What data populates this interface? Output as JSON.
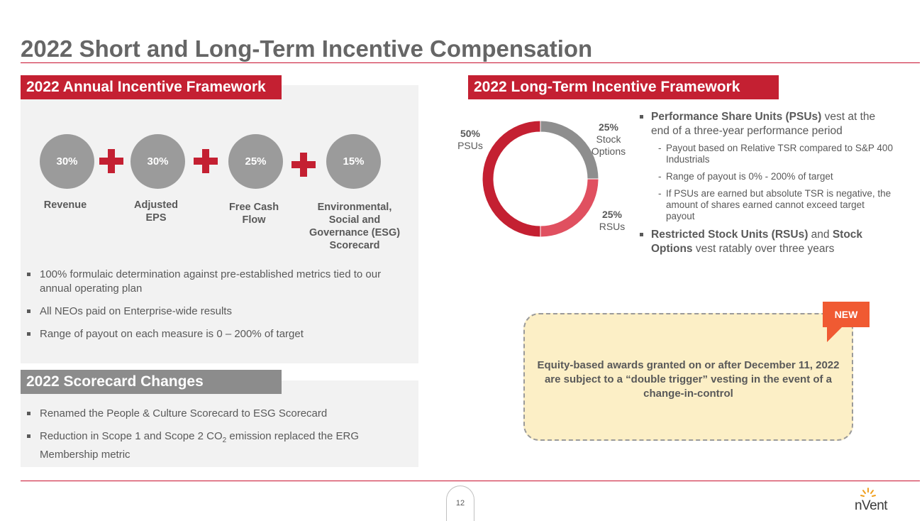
{
  "title": "2022 Short and Long-Term Incentive Compensation",
  "annual": {
    "header": "2022 Annual Incentive Framework",
    "metrics": [
      {
        "pct": "30%",
        "label": "Revenue"
      },
      {
        "pct": "30%",
        "label": "Adjusted EPS"
      },
      {
        "pct": "25%",
        "label": "Free Cash Flow"
      },
      {
        "pct": "15%",
        "label": "Environmental, Social and Governance (ESG) Scorecard"
      }
    ],
    "bullets": [
      "100% formulaic determination against pre-established metrics tied to our annual operating plan",
      "All NEOs paid on Enterprise-wide results",
      "Range of payout on each measure is 0 – 200% of target"
    ]
  },
  "scorecard": {
    "header": "2022 Scorecard Changes",
    "bullet1": "Renamed the People & Culture Scorecard to ESG Scorecard",
    "bullet2_pre": "Reduction in Scope 1 and Scope 2 CO",
    "bullet2_sub": "2",
    "bullet2_post": " emission replaced the ERG Membership metric"
  },
  "longterm": {
    "header": "2022 Long-Term Incentive Framework",
    "chart_data": {
      "type": "pie",
      "categories": [
        "Stock Options",
        "RSUs",
        "PSUs"
      ],
      "values": [
        25,
        25,
        50
      ],
      "colors": [
        "#8e8e8e",
        "#e05060",
        "#c42032"
      ],
      "labels": [
        {
          "pct": "25%",
          "name": "Stock Options"
        },
        {
          "pct": "25%",
          "name": "RSUs"
        },
        {
          "pct": "50%",
          "name": "PSUs"
        }
      ]
    },
    "psu_bold": "Performance Share Units (PSUs)",
    "psu_rest": " vest at the end of a three-year performance period",
    "psu_subs": [
      "Payout based on Relative TSR compared to S&P 400 Industrials",
      "Range of payout is 0% - 200% of target",
      "If PSUs are earned but absolute TSR is negative, the amount of shares earned cannot exceed target payout"
    ],
    "rsu_bold1": "Restricted Stock Units (RSUs)",
    "rsu_mid": " and ",
    "rsu_bold2": "Stock Options",
    "rsu_rest": " vest ratably over three years"
  },
  "note": {
    "tag": "NEW",
    "text": "Equity-based awards granted on or after December 11, 2022 are subject to a “double trigger” vesting in the event of a change-in-control"
  },
  "page_number": "12",
  "logo": {
    "text": "nVent",
    "icon": "sunburst-icon"
  },
  "colors": {
    "accent": "#c42032",
    "gray": "#8c8c8c",
    "note_bg": "#fcefc6",
    "tag": "#f05a32"
  }
}
